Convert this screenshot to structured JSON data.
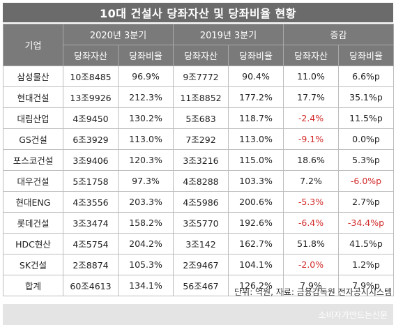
{
  "title": "10대 건설사 당좌자산 및 당좌비율 현황",
  "header": {
    "company": "기업",
    "period_2020": "2020년 3분기",
    "period_2019": "2019년 3분기",
    "change": "증감",
    "assets": "당좌자산",
    "ratio": "당좌비율"
  },
  "rows": [
    {
      "company": "삼성물산",
      "a2020": "10조8485",
      "r2020": "96.9%",
      "a2019": "9조7772",
      "r2019": "90.4%",
      "da": "11.0%",
      "dr": "6.6%p"
    },
    {
      "company": "현대건설",
      "a2020": "13조9926",
      "r2020": "212.3%",
      "a2019": "11조8852",
      "r2019": "177.2%",
      "da": "17.7%",
      "dr": "35.1%p"
    },
    {
      "company": "대림산업",
      "a2020": "4조9450",
      "r2020": "130.2%",
      "a2019": "5조683",
      "r2019": "118.7%",
      "da": "-2.4%",
      "dr": "11.5%p"
    },
    {
      "company": "GS건설",
      "a2020": "6조3929",
      "r2020": "113.0%",
      "a2019": "7조292",
      "r2019": "113.0%",
      "da": "-9.1%",
      "dr": "0.0%p"
    },
    {
      "company": "포스코건설",
      "a2020": "3조9406",
      "r2020": "120.3%",
      "a2019": "3조3216",
      "r2019": "115.0%",
      "da": "18.6%",
      "dr": "5.3%p"
    },
    {
      "company": "대우건설",
      "a2020": "5조1758",
      "r2020": "97.3%",
      "a2019": "4조8288",
      "r2019": "103.3%",
      "da": "7.2%",
      "dr": "-6.0%p"
    },
    {
      "company": "현대ENG",
      "a2020": "4조3556",
      "r2020": "203.3%",
      "a2019": "4조5986",
      "r2019": "200.6%",
      "da": "-5.3%",
      "dr": "2.7%p"
    },
    {
      "company": "롯데건설",
      "a2020": "3조3474",
      "r2020": "158.2%",
      "a2019": "3조5770",
      "r2019": "192.6%",
      "da": "-6.4%",
      "dr": "-34.4%p"
    },
    {
      "company": "HDC현산",
      "a2020": "4조5754",
      "r2020": "204.2%",
      "a2019": "3조142",
      "r2019": "162.7%",
      "da": "51.8%",
      "dr": "41.5%p"
    },
    {
      "company": "SK건설",
      "a2020": "2조8874",
      "r2020": "105.3%",
      "a2019": "2조9467",
      "r2019": "104.1%",
      "da": "-2.0%",
      "dr": "1.2%p"
    },
    {
      "company": "합계",
      "a2020": "60조4613",
      "r2020": "134.1%",
      "a2019": "56조467",
      "r2019": "126.2%",
      "da": "7.9%",
      "dr": "7.9%p"
    }
  ],
  "source": "단위: 억원, 자료: 금융감독원 전자공시시스템",
  "brand": "소비자가만드는신문",
  "colors": {
    "header_bg": "#7a7a7a",
    "title_bg": "#6b6b6b",
    "negative": "#d22a2a"
  }
}
